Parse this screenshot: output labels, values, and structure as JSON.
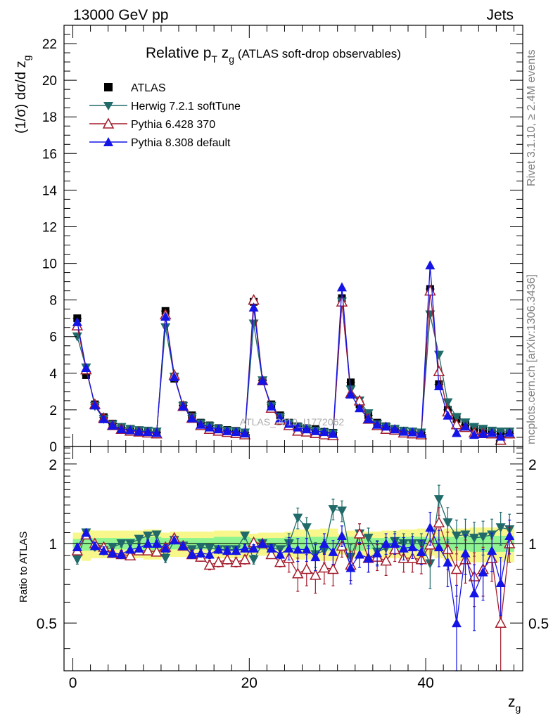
{
  "header": {
    "beam": "13000 GeV pp",
    "process": "Jets"
  },
  "side_labels": {
    "rivet": "Rivet 3.1.10, ≥ 2.4M events",
    "mcplots": "mcplots.cern.ch [arXiv:1306.3436]"
  },
  "watermark": "ATLAS_2019_I1772062",
  "colors": {
    "atlas": "#000000",
    "herwig": "#216a6a",
    "pythia6": "#a31b2a",
    "pythia8": "#1414e6",
    "band_inner": "#8ff48f",
    "band_outer": "#f7f78c"
  },
  "chart_data": [
    {
      "type": "scatter",
      "title_main": "Relative p",
      "title_main_sub": "T",
      "title_var": " z",
      "title_var_sub": "g",
      "title_rest": " (ATLAS soft-drop observables)",
      "ylabel": "(1/σ) dσ/d z",
      "ylabel_sub": "g",
      "xlim": [
        -1,
        51
      ],
      "ylim": [
        0,
        23
      ],
      "yticks": [
        "0",
        "2",
        "4",
        "6",
        "8",
        "10",
        "12",
        "14",
        "16",
        "18",
        "20",
        "22"
      ],
      "x": [
        0.5,
        1.5,
        2.5,
        3.5,
        4.5,
        5.5,
        6.5,
        7.5,
        8.5,
        9.5,
        10.5,
        11.5,
        12.5,
        13.5,
        14.5,
        15.5,
        16.5,
        17.5,
        18.5,
        19.5,
        20.5,
        21.5,
        22.5,
        23.5,
        24.5,
        25.5,
        26.5,
        27.5,
        28.5,
        29.5,
        30.5,
        31.5,
        32.5,
        33.5,
        34.5,
        35.5,
        36.5,
        37.5,
        38.5,
        39.5,
        40.5,
        41.5,
        42.5,
        43.5,
        44.5,
        45.5,
        46.5,
        47.5,
        48.5,
        49.5
      ],
      "series": [
        {
          "name": "ATLAS",
          "marker": "square",
          "values": [
            7.0,
            3.9,
            2.3,
            1.6,
            1.25,
            1.05,
            0.95,
            0.85,
            0.8,
            0.75,
            7.4,
            3.7,
            2.25,
            1.7,
            1.3,
            1.15,
            1.0,
            0.9,
            0.85,
            0.75,
            7.9,
            3.6,
            2.3,
            1.7,
            1.3,
            1.1,
            1.0,
            0.95,
            0.8,
            0.75,
            8.1,
            3.5,
            2.3,
            1.7,
            1.3,
            1.1,
            0.95,
            0.85,
            0.8,
            0.75,
            8.6,
            3.4,
            2.0,
            1.5,
            1.2,
            1.0,
            0.9,
            0.8,
            0.7,
            0.7
          ]
        },
        {
          "name": "Herwig 7.2.1 softTune",
          "marker": "triangle-down",
          "values": [
            6.0,
            4.3,
            2.2,
            1.5,
            1.2,
            1.05,
            0.95,
            0.88,
            0.85,
            0.8,
            6.5,
            3.8,
            2.2,
            1.6,
            1.25,
            1.1,
            0.95,
            0.85,
            0.8,
            0.75,
            6.7,
            3.6,
            2.2,
            1.6,
            1.25,
            1.05,
            0.95,
            0.85,
            0.75,
            0.7,
            7.9,
            3.1,
            2.5,
            1.8,
            1.2,
            1.05,
            0.95,
            0.85,
            0.8,
            0.75,
            7.2,
            5.0,
            2.4,
            1.6,
            1.3,
            1.05,
            0.95,
            0.85,
            0.8,
            0.8
          ]
        },
        {
          "name": "Pythia 6.428 370",
          "marker": "triangle-up-open",
          "values": [
            6.6,
            4.2,
            2.3,
            1.55,
            1.15,
            0.95,
            0.85,
            0.8,
            0.75,
            0.7,
            7.2,
            3.9,
            2.2,
            1.55,
            1.15,
            0.95,
            0.85,
            0.78,
            0.72,
            0.65,
            8.0,
            3.6,
            2.1,
            1.45,
            1.15,
            0.85,
            0.8,
            0.72,
            0.65,
            0.6,
            7.9,
            2.9,
            2.5,
            1.5,
            1.15,
            0.95,
            0.9,
            0.75,
            0.7,
            0.65,
            8.5,
            4.1,
            1.9,
            1.2,
            1.05,
            0.75,
            0.72,
            0.7,
            0.35,
            0.7
          ]
        },
        {
          "name": "Pythia 8.308 default",
          "marker": "triangle-up",
          "values": [
            6.8,
            4.3,
            2.25,
            1.5,
            1.15,
            0.95,
            0.9,
            0.82,
            0.8,
            0.75,
            7.1,
            3.8,
            2.2,
            1.55,
            1.2,
            1.05,
            0.95,
            0.85,
            0.8,
            0.72,
            7.6,
            3.6,
            2.2,
            1.55,
            1.25,
            1.05,
            0.95,
            0.85,
            0.8,
            0.7,
            8.7,
            2.85,
            2.1,
            1.5,
            1.2,
            1.1,
            0.95,
            0.82,
            0.78,
            0.7,
            9.9,
            3.3,
            1.7,
            0.75,
            1.1,
            0.65,
            0.7,
            0.75,
            0.55,
            0.75
          ]
        }
      ]
    },
    {
      "type": "scatter",
      "ylabel": "Ratio to ATLAS",
      "xlabel": "z",
      "xlabel_sub": "g",
      "xlim": [
        -1,
        51
      ],
      "ylim": [
        0.33,
        2.33
      ],
      "log_y": true,
      "yticks_left": [
        "0.5",
        "1",
        "2"
      ],
      "yticks_right": [
        "0.5",
        "1",
        "2"
      ],
      "xticks": [
        "0",
        "20",
        "40"
      ],
      "x": [
        0.5,
        1.5,
        2.5,
        3.5,
        4.5,
        5.5,
        6.5,
        7.5,
        8.5,
        9.5,
        10.5,
        11.5,
        12.5,
        13.5,
        14.5,
        15.5,
        16.5,
        17.5,
        18.5,
        19.5,
        20.5,
        21.5,
        22.5,
        23.5,
        24.5,
        25.5,
        26.5,
        27.5,
        28.5,
        29.5,
        30.5,
        31.5,
        32.5,
        33.5,
        34.5,
        35.5,
        36.5,
        37.5,
        38.5,
        39.5,
        40.5,
        41.5,
        42.5,
        43.5,
        44.5,
        45.5,
        46.5,
        47.5,
        48.5,
        49.5
      ],
      "band_inner_halfwidth": [
        0.04,
        0.06,
        0.05,
        0.05,
        0.05,
        0.05,
        0.05,
        0.05,
        0.06,
        0.06,
        0.05,
        0.05,
        0.05,
        0.05,
        0.05,
        0.05,
        0.06,
        0.06,
        0.06,
        0.06,
        0.05,
        0.05,
        0.05,
        0.05,
        0.06,
        0.06,
        0.06,
        0.06,
        0.06,
        0.06,
        0.05,
        0.06,
        0.06,
        0.05,
        0.05,
        0.05,
        0.06,
        0.06,
        0.06,
        0.06,
        0.05,
        0.06,
        0.06,
        0.06,
        0.06,
        0.07,
        0.07,
        0.07,
        0.07,
        0.07
      ],
      "band_outer_halfwidth": [
        0.1,
        0.14,
        0.12,
        0.12,
        0.12,
        0.12,
        0.12,
        0.12,
        0.13,
        0.13,
        0.1,
        0.11,
        0.11,
        0.11,
        0.11,
        0.11,
        0.12,
        0.12,
        0.12,
        0.12,
        0.09,
        0.1,
        0.1,
        0.1,
        0.11,
        0.13,
        0.13,
        0.13,
        0.14,
        0.14,
        0.09,
        0.12,
        0.12,
        0.11,
        0.11,
        0.12,
        0.12,
        0.13,
        0.13,
        0.14,
        0.1,
        0.12,
        0.14,
        0.14,
        0.14,
        0.15,
        0.15,
        0.15,
        0.15,
        0.15
      ],
      "series": [
        {
          "name": "Herwig 7.2.1 softTune",
          "values": [
            0.87,
            1.1,
            0.97,
            0.94,
            0.97,
            1.0,
            1.0,
            1.04,
            1.07,
            1.08,
            0.88,
            1.03,
            0.98,
            0.95,
            0.97,
            0.96,
            0.95,
            0.95,
            0.95,
            1.07,
            0.87,
            1.0,
            0.96,
            0.95,
            1.0,
            1.25,
            1.15,
            0.91,
            0.94,
            1.35,
            1.33,
            0.89,
            1.09,
            1.05,
            0.93,
            0.96,
            1.02,
            1.0,
            1.0,
            1.0,
            0.84,
            1.47,
            1.2,
            1.07,
            1.08,
            1.05,
            1.06,
            1.08,
            1.15,
            1.13
          ]
        },
        {
          "name": "Pythia 6.428 370",
          "values": [
            0.94,
            1.08,
            1.0,
            0.97,
            0.92,
            0.91,
            0.9,
            0.94,
            0.94,
            0.93,
            0.97,
            1.05,
            0.98,
            0.91,
            0.89,
            0.83,
            0.85,
            0.87,
            0.85,
            0.87,
            1.01,
            1.0,
            0.91,
            0.85,
            0.88,
            0.77,
            0.8,
            0.76,
            0.81,
            0.8,
            0.98,
            0.83,
            1.09,
            0.88,
            0.89,
            0.86,
            0.95,
            0.88,
            0.88,
            0.87,
            0.99,
            1.2,
            0.95,
            0.8,
            0.87,
            0.75,
            0.8,
            0.88,
            0.5,
            1.0
          ]
        },
        {
          "name": "Pythia 8.308 default",
          "values": [
            0.97,
            1.1,
            0.98,
            0.94,
            0.92,
            0.91,
            0.95,
            0.96,
            1.0,
            1.0,
            0.96,
            1.03,
            0.98,
            0.91,
            0.92,
            0.91,
            0.95,
            0.94,
            0.94,
            0.96,
            0.96,
            1.0,
            0.96,
            0.91,
            0.96,
            0.95,
            0.95,
            0.89,
            1.0,
            0.93,
            1.07,
            0.81,
            0.91,
            0.88,
            0.92,
            1.0,
            1.0,
            0.96,
            0.97,
            0.93,
            1.15,
            0.97,
            0.85,
            0.5,
            0.92,
            0.65,
            0.78,
            0.94,
            0.71,
            1.07
          ]
        }
      ]
    }
  ]
}
